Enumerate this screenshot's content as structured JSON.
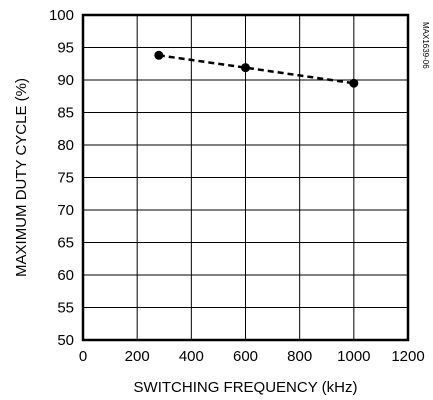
{
  "chart_data": {
    "type": "line",
    "xlabel": "SWITCHING FREQUENCY (kHz)",
    "ylabel": "MAXIMUM DUTY CYCLE (%)",
    "xlim": [
      0,
      1200
    ],
    "ylim": [
      50,
      100
    ],
    "x_ticks": [
      0,
      200,
      400,
      600,
      800,
      1000,
      1200
    ],
    "y_ticks": [
      50,
      55,
      60,
      65,
      70,
      75,
      80,
      85,
      90,
      95,
      100
    ],
    "grid": true,
    "line_style": "dashed",
    "marker": "filled-circle",
    "series": [
      {
        "x": [
          280,
          600,
          1000
        ],
        "y": [
          93.8,
          91.9,
          89.5
        ]
      }
    ],
    "annotation": "MAX1639-06"
  }
}
